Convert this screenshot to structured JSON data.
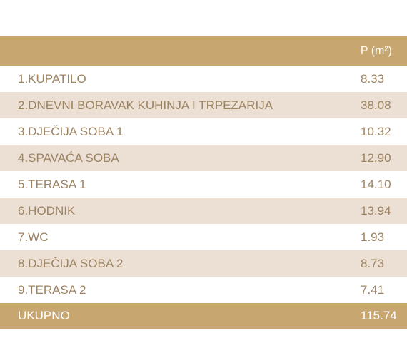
{
  "table": {
    "header_unit": "P (m²)",
    "rows": [
      {
        "name": "1.KUPATILO",
        "area": "8.33"
      },
      {
        "name": "2.DNEVNI BORAVAK KUHINJA I TRPEZARIJA",
        "area": "38.08"
      },
      {
        "name": "3.DJEČIJA SOBA 1",
        "area": "10.32"
      },
      {
        "name": "4.SPAVAĆA SOBA",
        "area": "12.90"
      },
      {
        "name": "5.TERASA 1",
        "area": "14.10"
      },
      {
        "name": "6.HODNIK",
        "area": "13.94"
      },
      {
        "name": "7.WC",
        "area": "1.93"
      },
      {
        "name": "8.DJEČIJA SOBA 2",
        "area": "8.73"
      },
      {
        "name": "9.TERASA 2",
        "area": "7.41"
      }
    ],
    "total_label": "UKUPNO",
    "total_value": "115.74"
  },
  "colors": {
    "header_bg": "#c7a670",
    "shaded_row_bg": "#ecdfd3",
    "text": "#9c8463",
    "header_text": "#ffffff"
  }
}
